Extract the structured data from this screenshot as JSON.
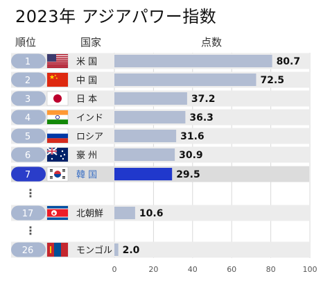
{
  "title": "2023年 アジアパワー指数",
  "headers": {
    "rank": "順位",
    "country": "国家",
    "points": "点数"
  },
  "colors": {
    "bar": "#b2bdd3",
    "highlight_bar": "#2038cc",
    "rank_pill": "#a9b7d1",
    "highlight_pill": "#2a3dc9"
  },
  "chart_data": {
    "type": "bar",
    "orientation": "horizontal",
    "title": "2023年 アジアパワー指数",
    "xlim": [
      0,
      100
    ],
    "x_ticks": [
      "0",
      "20",
      "40",
      "60",
      "80",
      "100"
    ],
    "grid": true,
    "highlight": "韓 国",
    "rows": [
      {
        "rank": "1",
        "country": "米 国",
        "flag": "us-flag",
        "value": 80.7,
        "label": "80.7"
      },
      {
        "rank": "2",
        "country": "中 国",
        "flag": "china-flag",
        "value": 72.5,
        "label": "72.5"
      },
      {
        "rank": "3",
        "country": "日 本",
        "flag": "japan-flag",
        "value": 37.2,
        "label": "37.2"
      },
      {
        "rank": "4",
        "country": "インド",
        "flag": "india-flag",
        "value": 36.3,
        "label": "36.3"
      },
      {
        "rank": "5",
        "country": "ロシア",
        "flag": "russia-flag",
        "value": 31.6,
        "label": "31.6"
      },
      {
        "rank": "6",
        "country": "豪 州",
        "flag": "australia-flag",
        "value": 30.9,
        "label": "30.9"
      },
      {
        "rank": "7",
        "country": "韓 国",
        "flag": "south-korea-flag",
        "value": 29.5,
        "label": "29.5"
      },
      {
        "gap": true
      },
      {
        "rank": "17",
        "country": "北朝鮮",
        "flag": "north-korea-flag",
        "value": 10.6,
        "label": "10.6"
      },
      {
        "gap": true
      },
      {
        "rank": "26",
        "country": "モンゴル",
        "flag": "mongolia-flag",
        "value": 2.0,
        "label": "2.0"
      }
    ]
  }
}
